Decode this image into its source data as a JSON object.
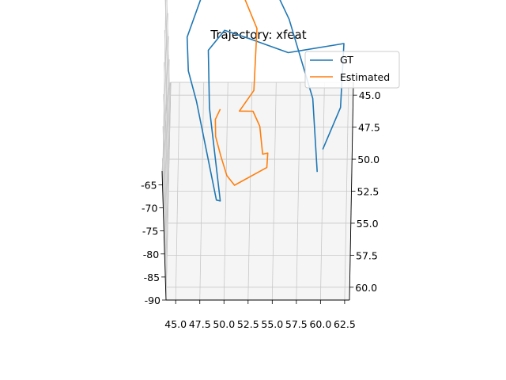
{
  "chart_data": {
    "type": "line",
    "projection": "3d",
    "title": "Trajectory: xfeat",
    "legend": {
      "placement": "top-right",
      "entries": [
        "GT",
        "Estimated"
      ]
    },
    "grid": true,
    "x_axis": {
      "ticks": [
        "45.0",
        "47.5",
        "50.0",
        "52.5",
        "55.0",
        "57.5",
        "60.0",
        "62.5"
      ],
      "range": [
        44.0,
        63.0
      ]
    },
    "y_axis": {
      "ticks": [
        "45.0",
        "47.5",
        "50.0",
        "52.5",
        "55.0",
        "57.5",
        "60.0"
      ],
      "range": [
        44.0,
        61.0
      ]
    },
    "z_axis": {
      "ticks": [
        "-65",
        "-70",
        "-75",
        "-80",
        "-85",
        "-90"
      ],
      "range": [
        -90.0,
        -62.0
      ]
    },
    "series": [
      {
        "name": "GT",
        "color": "#1f77b4",
        "points": [
          [
            60.5,
            57.8,
            -66.2
          ],
          [
            62.3,
            55.0,
            -64.9
          ],
          [
            62.5,
            49.5,
            -66.3
          ],
          [
            56.8,
            51.0,
            -64.1
          ],
          [
            52.8,
            50.6,
            -62.2
          ],
          [
            50.2,
            49.8,
            -62.6
          ],
          [
            48.5,
            50.6,
            -64.7
          ],
          [
            48.6,
            53.2,
            -70.0
          ],
          [
            49.7,
            57.4,
            -78.5
          ],
          [
            49.3,
            57.4,
            -78.3
          ],
          [
            47.2,
            52.0,
            -71.9
          ],
          [
            46.4,
            51.2,
            -67.5
          ],
          [
            46.3,
            49.9,
            -63.8
          ],
          [
            48.0,
            46.5,
            -62.9
          ],
          [
            54.4,
            44.6,
            -64.3
          ],
          [
            56.8,
            48.0,
            -65.2
          ],
          [
            59.3,
            52.6,
            -69.6
          ],
          [
            59.8,
            56.9,
            -73.6
          ]
        ]
      },
      {
        "name": "Estimated",
        "color": "#ff7f0e",
        "points": [
          [
            50.3,
            46.5,
            -59.8
          ],
          [
            51.5,
            46.0,
            -59.9
          ],
          [
            51.9,
            47.0,
            -61.9
          ],
          [
            53.5,
            49.0,
            -64.4
          ],
          [
            53.2,
            52.3,
            -68.7
          ],
          [
            51.7,
            53.3,
            -70.4
          ],
          [
            53.1,
            53.2,
            -70.7
          ],
          [
            53.8,
            53.8,
            -72.3
          ],
          [
            54.1,
            55.3,
            -74.2
          ],
          [
            54.6,
            54.7,
            -75.6
          ],
          [
            54.5,
            55.4,
            -76.8
          ],
          [
            51.2,
            57.0,
            -76.2
          ],
          [
            50.4,
            56.5,
            -75.5
          ],
          [
            49.8,
            56.0,
            -72.6
          ],
          [
            49.3,
            55.5,
            -69.8
          ],
          [
            49.3,
            55.1,
            -67.2
          ],
          [
            49.8,
            54.4,
            -66.9
          ]
        ]
      }
    ]
  }
}
